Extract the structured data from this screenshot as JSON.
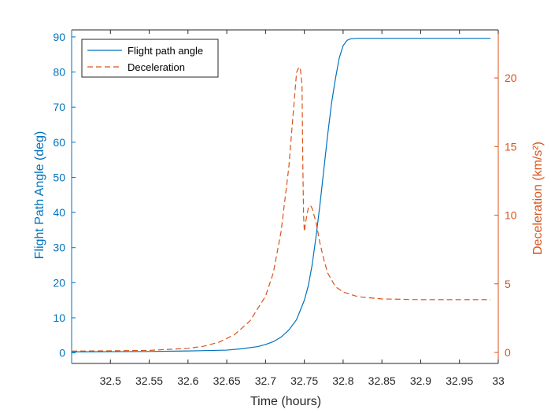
{
  "colors": {
    "left_axis": "#0072bd",
    "right_axis": "#d95319",
    "axes": "#262626",
    "background": "#ffffff"
  },
  "chart_data": {
    "type": "line",
    "title": "",
    "xlabel": "Time (hours)",
    "ylabel_left": "Flight Path Angle (deg)",
    "ylabel_right": "Deceleration (km/s²)",
    "xlim": [
      32.45,
      33.0
    ],
    "ylim_left": [
      -3,
      92
    ],
    "ylim_right": [
      -0.8,
      23.5
    ],
    "x_ticks": [
      32.5,
      32.55,
      32.6,
      32.65,
      32.7,
      32.75,
      32.8,
      32.85,
      32.9,
      32.95,
      33
    ],
    "x_tick_labels": [
      "32.5",
      "32.55",
      "32.6",
      "32.65",
      "32.7",
      "32.75",
      "32.8",
      "32.85",
      "32.9",
      "32.95",
      "33"
    ],
    "y_ticks_left": [
      0,
      10,
      20,
      30,
      40,
      50,
      60,
      70,
      80,
      90
    ],
    "y_tick_labels_left": [
      "0",
      "10",
      "20",
      "30",
      "40",
      "50",
      "60",
      "70",
      "80",
      "90"
    ],
    "y_ticks_right": [
      0,
      5,
      10,
      15,
      20
    ],
    "y_tick_labels_right": [
      "0",
      "5",
      "10",
      "15",
      "20"
    ],
    "grid": false,
    "legend_placement": "top-left",
    "series": [
      {
        "name": "Flight path angle",
        "axis": "left",
        "style": "solid",
        "color": "#0072bd",
        "x": [
          32.45,
          32.5,
          32.55,
          32.6,
          32.65,
          32.67,
          32.69,
          32.7,
          32.71,
          32.72,
          32.73,
          32.74,
          32.75,
          32.755,
          32.76,
          32.765,
          32.77,
          32.775,
          32.78,
          32.785,
          32.79,
          32.795,
          32.8,
          32.805,
          32.81,
          32.82,
          32.83,
          32.85,
          32.9,
          32.95,
          32.99
        ],
        "y": [
          0.3,
          0.35,
          0.4,
          0.55,
          0.8,
          1.2,
          1.8,
          2.4,
          3.2,
          4.5,
          6.5,
          9.5,
          15,
          19,
          25,
          33,
          42,
          52,
          62,
          71,
          78,
          84,
          87.5,
          89,
          89.5,
          89.6,
          89.6,
          89.6,
          89.6,
          89.6,
          89.6
        ]
      },
      {
        "name": "Deceleration",
        "axis": "right",
        "style": "dashed",
        "color": "#d95319",
        "x": [
          32.45,
          32.5,
          32.55,
          32.6,
          32.62,
          32.64,
          32.66,
          32.68,
          32.7,
          32.71,
          32.72,
          32.73,
          32.735,
          32.74,
          32.743,
          32.745,
          32.747,
          32.748,
          32.749,
          32.75,
          32.752,
          32.755,
          32.758,
          32.76,
          32.765,
          32.77,
          32.775,
          32.78,
          32.79,
          32.8,
          32.82,
          32.85,
          32.9,
          32.95,
          32.99
        ],
        "y": [
          0.1,
          0.12,
          0.15,
          0.3,
          0.45,
          0.75,
          1.3,
          2.3,
          4.1,
          5.8,
          8.8,
          13.5,
          17,
          20.4,
          20.8,
          20.6,
          19.5,
          14,
          10,
          8.8,
          9.6,
          10.5,
          10.7,
          10.5,
          9.5,
          8,
          6.8,
          5.8,
          4.8,
          4.4,
          4.05,
          3.9,
          3.85,
          3.85,
          3.85
        ]
      }
    ]
  }
}
